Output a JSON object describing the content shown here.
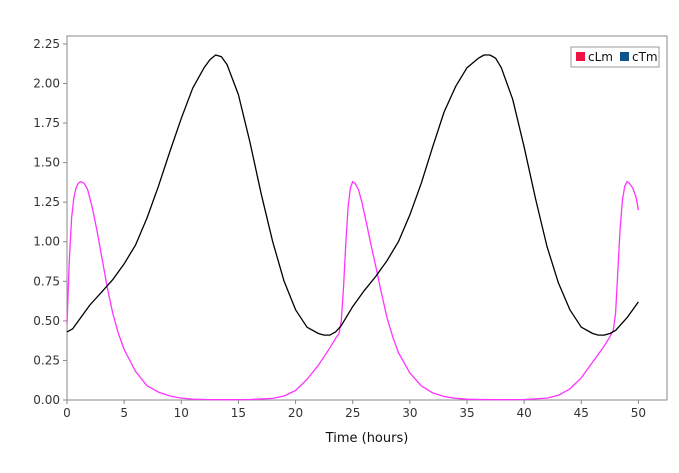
{
  "chart_data": {
    "type": "line",
    "title": "",
    "xlabel": "Time (hours)",
    "ylabel": "",
    "xlim": [
      0,
      52.5
    ],
    "ylim": [
      0,
      2.3
    ],
    "x_ticks": [
      0,
      5,
      10,
      15,
      20,
      25,
      30,
      35,
      40,
      45,
      50
    ],
    "x_tick_labels": [
      "0",
      "5",
      "10",
      "15",
      "20",
      "25",
      "30",
      "35",
      "40",
      "45",
      "50"
    ],
    "y_ticks": [
      0,
      0.25,
      0.5,
      0.75,
      1.0,
      1.25,
      1.5,
      1.75,
      2.0,
      2.25
    ],
    "y_tick_labels": [
      "0.00",
      "0.25",
      "0.50",
      "0.75",
      "1.00",
      "1.25",
      "1.50",
      "1.75",
      "2.00",
      "2.25"
    ],
    "grid": false,
    "legend_position": "top-right",
    "series": [
      {
        "name": "cLm",
        "color": "#ff33ff",
        "legend_color": "#ee1144",
        "x": [
          0,
          0.2,
          0.4,
          0.6,
          0.8,
          1.0,
          1.2,
          1.5,
          1.8,
          2.2,
          2.6,
          3.0,
          3.5,
          4.0,
          4.5,
          5.0,
          6.0,
          7.0,
          8.0,
          9.0,
          10.0,
          11.0,
          12.0,
          14.0,
          16.0,
          18.0,
          19.0,
          20.0,
          21.0,
          22.0,
          23.0,
          23.5,
          23.8,
          24.0,
          24.2,
          24.4,
          24.6,
          24.8,
          25.0,
          25.2,
          25.5,
          25.8,
          26.2,
          26.6,
          27.0,
          27.5,
          28.0,
          28.5,
          29.0,
          30.0,
          31.0,
          32.0,
          33.0,
          34.0,
          35.0,
          36.0,
          38.0,
          40.0,
          42.0,
          43.0,
          44.0,
          45.0,
          46.0,
          47.0,
          47.5,
          47.8,
          48.0,
          48.2,
          48.4,
          48.6,
          48.8,
          49.0,
          49.2,
          49.5,
          49.8,
          50.0
        ],
        "y": [
          0.48,
          0.88,
          1.15,
          1.28,
          1.34,
          1.37,
          1.38,
          1.37,
          1.33,
          1.22,
          1.08,
          0.92,
          0.72,
          0.55,
          0.42,
          0.32,
          0.18,
          0.09,
          0.05,
          0.025,
          0.012,
          0.006,
          0.003,
          0.002,
          0.003,
          0.01,
          0.025,
          0.06,
          0.13,
          0.22,
          0.33,
          0.39,
          0.42,
          0.5,
          0.72,
          1.0,
          1.22,
          1.34,
          1.38,
          1.37,
          1.33,
          1.25,
          1.12,
          0.98,
          0.85,
          0.68,
          0.52,
          0.4,
          0.3,
          0.17,
          0.09,
          0.045,
          0.022,
          0.011,
          0.005,
          0.003,
          0.002,
          0.003,
          0.012,
          0.03,
          0.07,
          0.14,
          0.24,
          0.34,
          0.4,
          0.44,
          0.55,
          0.82,
          1.08,
          1.26,
          1.35,
          1.38,
          1.37,
          1.34,
          1.28,
          1.2
        ]
      },
      {
        "name": "cTm",
        "color": "#000000",
        "legend_color": "#115588",
        "x": [
          0,
          0.5,
          1.0,
          2.0,
          3.0,
          4.0,
          5.0,
          6.0,
          7.0,
          8.0,
          9.0,
          10.0,
          11.0,
          12.0,
          12.5,
          13.0,
          13.5,
          14.0,
          15.0,
          16.0,
          17.0,
          18.0,
          19.0,
          20.0,
          21.0,
          22.0,
          22.5,
          23.0,
          23.5,
          24.0,
          25.0,
          26.0,
          27.0,
          28.0,
          29.0,
          30.0,
          31.0,
          32.0,
          33.0,
          34.0,
          35.0,
          36.0,
          36.5,
          37.0,
          37.5,
          38.0,
          39.0,
          40.0,
          41.0,
          42.0,
          43.0,
          44.0,
          45.0,
          46.0,
          46.5,
          47.0,
          47.5,
          48.0,
          49.0,
          50.0
        ],
        "y": [
          0.43,
          0.45,
          0.5,
          0.6,
          0.68,
          0.76,
          0.86,
          0.98,
          1.15,
          1.35,
          1.57,
          1.78,
          1.97,
          2.1,
          2.15,
          2.18,
          2.17,
          2.12,
          1.93,
          1.63,
          1.3,
          1.0,
          0.75,
          0.57,
          0.46,
          0.42,
          0.41,
          0.41,
          0.43,
          0.47,
          0.59,
          0.69,
          0.78,
          0.88,
          1.0,
          1.17,
          1.37,
          1.6,
          1.82,
          1.98,
          2.1,
          2.16,
          2.18,
          2.18,
          2.16,
          2.1,
          1.9,
          1.6,
          1.27,
          0.97,
          0.74,
          0.57,
          0.46,
          0.42,
          0.41,
          0.41,
          0.42,
          0.44,
          0.52,
          0.62
        ]
      }
    ]
  }
}
